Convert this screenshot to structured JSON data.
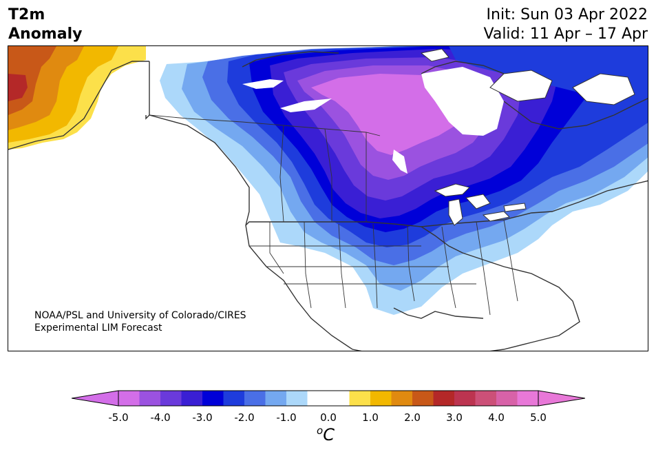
{
  "title": {
    "line1": "T2m",
    "line2": "Anomaly"
  },
  "init": {
    "line1": "Init: Sun 03 Apr 2022",
    "line2": "Valid: 11 Apr – 17 Apr"
  },
  "credit": {
    "line1": "NOAA/PSL and University of Colorado/CIRES",
    "line2": "Experimental LIM Forecast"
  },
  "colorbar": {
    "unit_sup": "o",
    "unit_main": "C",
    "ticks": [
      "-5.0",
      "-4.0",
      "-3.0",
      "-2.0",
      "-1.0",
      "0.0",
      "1.0",
      "2.0",
      "3.0",
      "4.0",
      "5.0"
    ],
    "colors": [
      "#d36ee8",
      "#9b52e0",
      "#6a3adb",
      "#3a1fd4",
      "#0000d8",
      "#1e3cdc",
      "#4a6fe6",
      "#74a8f0",
      "#acd8fa",
      "#ffffff",
      "#ffffff",
      "#fce04a",
      "#f2b800",
      "#e08a10",
      "#c85818",
      "#b42828",
      "#bc3450",
      "#cc5078",
      "#d862a8",
      "#e878d8"
    ],
    "extend_low_color": "#d36ee8",
    "extend_high_color": "#e878d8"
  },
  "map": {
    "anomaly_colors": {
      "ocean_coast": "#333333",
      "c_m5": "#d36ee8",
      "c_m45": "#9b52e0",
      "c_m4": "#6a3adb",
      "c_m35": "#3a1fd4",
      "c_m3": "#0000d8",
      "c_m25": "#1e3cdc",
      "c_m2": "#4a6fe6",
      "c_m15": "#74a8f0",
      "c_m1": "#acd8fa",
      "w1": "#fce04a",
      "w15": "#f2b800",
      "w2": "#e08a10",
      "w25": "#c85818",
      "w3": "#b42828"
    }
  }
}
